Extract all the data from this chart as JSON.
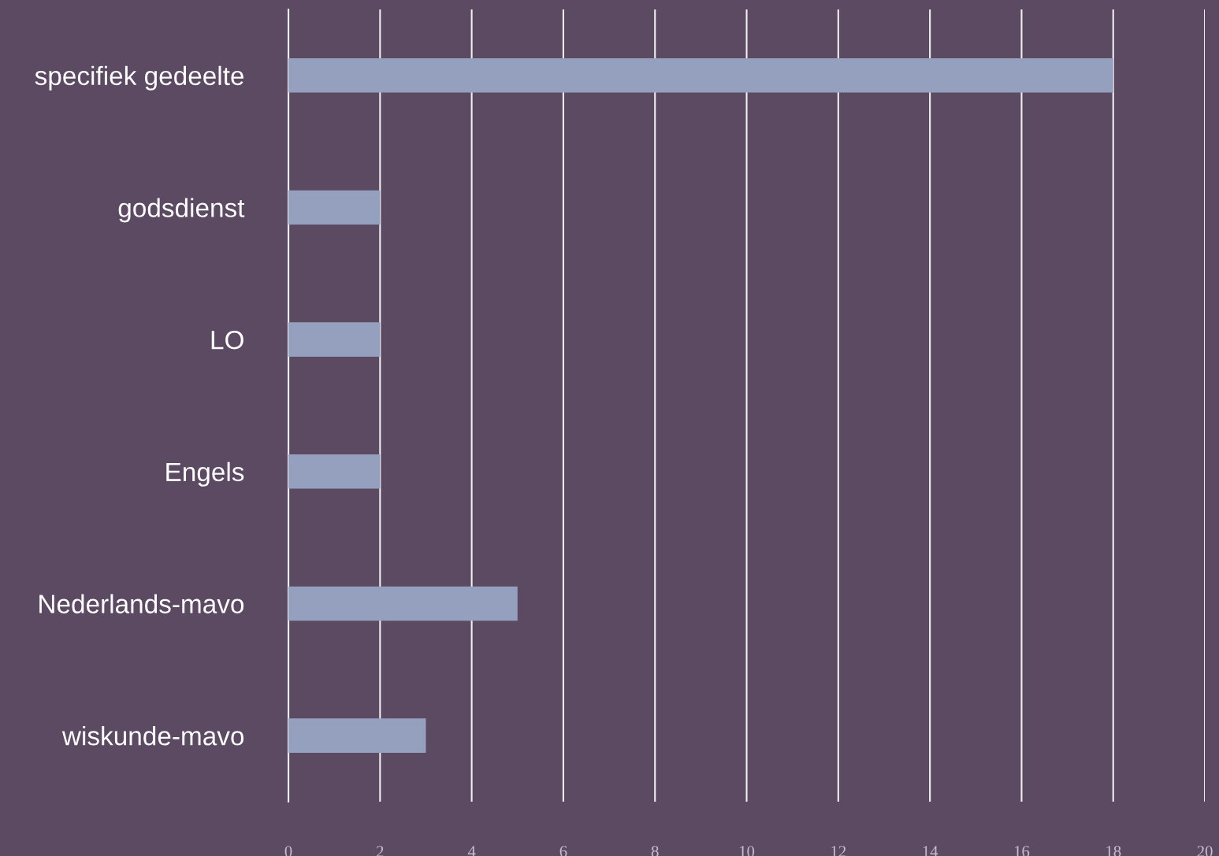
{
  "chart_data": {
    "type": "bar",
    "orientation": "horizontal",
    "categories": [
      "specifiek gedeelte",
      "godsdienst",
      "LO",
      "Engels",
      "Nederlands-mavo",
      "wiskunde-mavo"
    ],
    "values": [
      18,
      2,
      2,
      2,
      5,
      3
    ],
    "color": "#95a0bf",
    "xlim": [
      0,
      20
    ],
    "xticks": [
      0,
      2,
      4,
      6,
      8,
      10,
      12,
      14,
      16,
      18,
      20
    ],
    "grid": "x",
    "legend": false
  }
}
